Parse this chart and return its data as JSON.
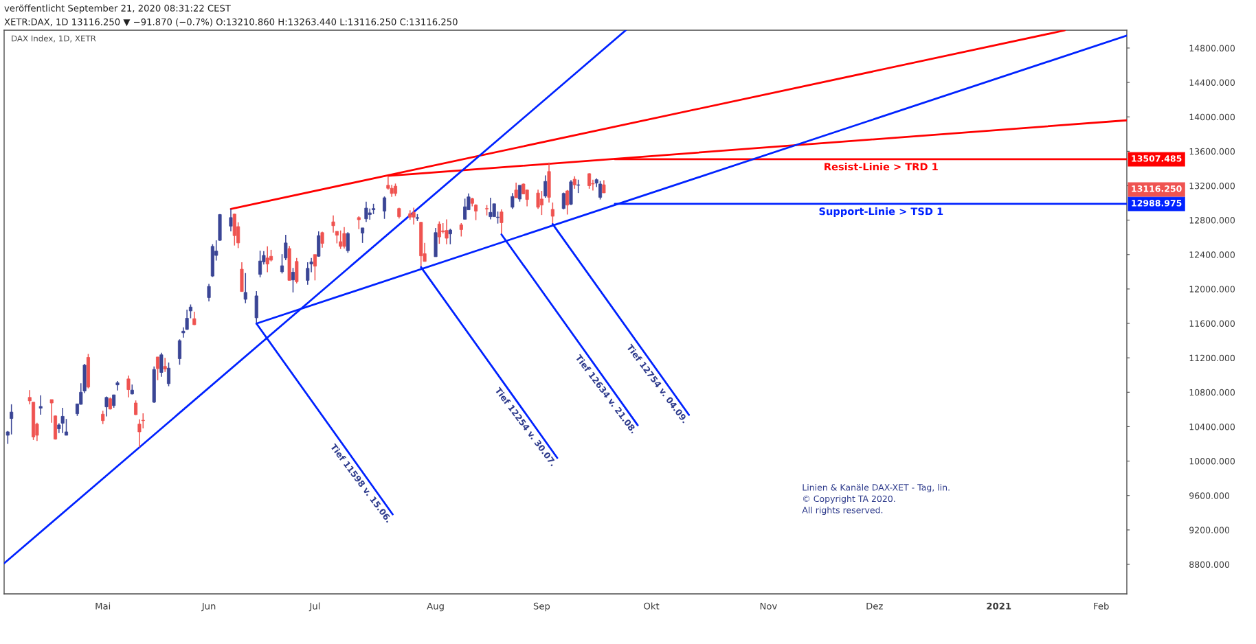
{
  "chart_data": {
    "type": "candlestick",
    "title": "XETR:DAX, 1D 13116.250 ▼ −91.870 (−0.7%) O:13210.860 H:13263.440 L:13116.250 C:13116.250",
    "subtitle": "DAX Index, 1D, XETR",
    "x": [
      "2020-04-08",
      "2020-04-09",
      "2020-04-14",
      "2020-04-15",
      "2020-04-16",
      "2020-04-17",
      "2020-04-20",
      "2020-04-21",
      "2020-04-22",
      "2020-04-23",
      "2020-04-24",
      "2020-04-27",
      "2020-04-28",
      "2020-04-29",
      "2020-04-30",
      "2020-05-04",
      "2020-05-05",
      "2020-05-06",
      "2020-05-07",
      "2020-05-08",
      "2020-05-11",
      "2020-05-12",
      "2020-05-13",
      "2020-05-14",
      "2020-05-15",
      "2020-05-18",
      "2020-05-19",
      "2020-05-20",
      "2020-05-21",
      "2020-05-22",
      "2020-05-25",
      "2020-05-26",
      "2020-05-27",
      "2020-05-28",
      "2020-05-29",
      "2020-06-02",
      "2020-06-03",
      "2020-06-04",
      "2020-06-05",
      "2020-06-08",
      "2020-06-09",
      "2020-06-10",
      "2020-06-11",
      "2020-06-12",
      "2020-06-15",
      "2020-06-16",
      "2020-06-17",
      "2020-06-18",
      "2020-06-19",
      "2020-06-22",
      "2020-06-23",
      "2020-06-24",
      "2020-06-25",
      "2020-06-26",
      "2020-06-29",
      "2020-06-30",
      "2020-07-01",
      "2020-07-02",
      "2020-07-03",
      "2020-07-06",
      "2020-07-07",
      "2020-07-08",
      "2020-07-09",
      "2020-07-10",
      "2020-07-13",
      "2020-07-14",
      "2020-07-15",
      "2020-07-16",
      "2020-07-17",
      "2020-07-20",
      "2020-07-21",
      "2020-07-22",
      "2020-07-23",
      "2020-07-24",
      "2020-07-27",
      "2020-07-28",
      "2020-07-29",
      "2020-07-30",
      "2020-07-31",
      "2020-08-03",
      "2020-08-04",
      "2020-08-05",
      "2020-08-06",
      "2020-08-07",
      "2020-08-10",
      "2020-08-11",
      "2020-08-12",
      "2020-08-13",
      "2020-08-14",
      "2020-08-17",
      "2020-08-18",
      "2020-08-19",
      "2020-08-20",
      "2020-08-21",
      "2020-08-24",
      "2020-08-25",
      "2020-08-26",
      "2020-08-27",
      "2020-08-28",
      "2020-08-31",
      "2020-09-01",
      "2020-09-02",
      "2020-09-03",
      "2020-09-04",
      "2020-09-07",
      "2020-09-08",
      "2020-09-09",
      "2020-09-10",
      "2020-09-11",
      "2020-09-14",
      "2020-09-15",
      "2020-09-16",
      "2020-09-17",
      "2020-09-18"
    ],
    "ohlc": [
      [
        10300,
        10350,
        10200,
        10340
      ],
      [
        10495,
        10660,
        10310,
        10570
      ],
      [
        10740,
        10825,
        10660,
        10700
      ],
      [
        10685,
        10685,
        10245,
        10280
      ],
      [
        10430,
        10445,
        10235,
        10300
      ],
      [
        10615,
        10765,
        10540,
        10635
      ],
      [
        10715,
        10715,
        10445,
        10675
      ],
      [
        10525,
        10530,
        10250,
        10255
      ],
      [
        10375,
        10440,
        10325,
        10420
      ],
      [
        10440,
        10620,
        10325,
        10520
      ],
      [
        10300,
        10490,
        10300,
        10340
      ],
      [
        10550,
        10665,
        10525,
        10665
      ],
      [
        10660,
        10905,
        10655,
        10800
      ],
      [
        10815,
        11130,
        10790,
        11115
      ],
      [
        11205,
        11245,
        10845,
        10860
      ],
      [
        10545,
        10585,
        10430,
        10470
      ],
      [
        10630,
        10750,
        10520,
        10740
      ],
      [
        10725,
        10740,
        10600,
        10605
      ],
      [
        10645,
        10770,
        10620,
        10770
      ],
      [
        10885,
        10930,
        10820,
        10910
      ],
      [
        10955,
        10995,
        10740,
        10830
      ],
      [
        10780,
        10890,
        10775,
        10825
      ],
      [
        10675,
        10705,
        10535,
        10540
      ],
      [
        10430,
        10485,
        10160,
        10340
      ],
      [
        10475,
        10555,
        10380,
        10470
      ],
      [
        10685,
        11100,
        10675,
        11065
      ],
      [
        11210,
        11210,
        10940,
        11075
      ],
      [
        11030,
        11260,
        10980,
        11235
      ],
      [
        11100,
        11200,
        11035,
        11070
      ],
      [
        10900,
        11145,
        10870,
        11080
      ],
      [
        11190,
        11415,
        11120,
        11400
      ],
      [
        11490,
        11555,
        11435,
        11510
      ],
      [
        11530,
        11760,
        11525,
        11660
      ],
      [
        11745,
        11820,
        11660,
        11790
      ],
      [
        11655,
        11735,
        11580,
        11585
      ],
      [
        11900,
        12060,
        11855,
        12030
      ],
      [
        12150,
        12520,
        12140,
        12495
      ],
      [
        12390,
        12565,
        12330,
        12440
      ],
      [
        12565,
        12870,
        12560,
        12865
      ],
      [
        12730,
        12930,
        12670,
        12830
      ],
      [
        12870,
        12875,
        12505,
        12620
      ],
      [
        12725,
        12775,
        12475,
        12535
      ],
      [
        12230,
        12310,
        11970,
        11970
      ],
      [
        11880,
        12185,
        11835,
        11960
      ],
      [
        11665,
        11975,
        11598,
        11920
      ],
      [
        12170,
        12445,
        12135,
        12325
      ],
      [
        12315,
        12440,
        12285,
        12390
      ],
      [
        12360,
        12495,
        12195,
        12290
      ],
      [
        12380,
        12455,
        12320,
        12335
      ],
      [
        12200,
        12405,
        12180,
        12270
      ],
      [
        12360,
        12630,
        12335,
        12535
      ],
      [
        12470,
        12500,
        12100,
        12100
      ],
      [
        12105,
        12245,
        11960,
        12195
      ],
      [
        12320,
        12360,
        12065,
        12085
      ],
      [
        12100,
        12310,
        12050,
        12240
      ],
      [
        12290,
        12360,
        12195,
        12315
      ],
      [
        12400,
        12400,
        12100,
        12265
      ],
      [
        12380,
        12670,
        12375,
        12620
      ],
      [
        12655,
        12665,
        12480,
        12530
      ],
      [
        12780,
        12855,
        12655,
        12735
      ],
      [
        12670,
        12670,
        12530,
        12625
      ],
      [
        12550,
        12680,
        12465,
        12495
      ],
      [
        12645,
        12720,
        12470,
        12495
      ],
      [
        12445,
        12660,
        12420,
        12645
      ],
      [
        12830,
        12845,
        12695,
        12805
      ],
      [
        12650,
        12710,
        12535,
        12710
      ],
      [
        12815,
        13015,
        12780,
        12940
      ],
      [
        12865,
        12935,
        12805,
        12885
      ],
      [
        12920,
        12990,
        12870,
        12935
      ],
      [
        12905,
        13075,
        12815,
        13060
      ],
      [
        13205,
        13314,
        13155,
        13170
      ],
      [
        13170,
        13210,
        13070,
        13110
      ],
      [
        13195,
        13225,
        13080,
        13110
      ],
      [
        12935,
        12945,
        12820,
        12840
      ],
      [
        12875,
        12915,
        12805,
        12835
      ],
      [
        12890,
        12945,
        12750,
        12835
      ],
      [
        12820,
        12870,
        12790,
        12830
      ],
      [
        12775,
        12780,
        12254,
        12385
      ],
      [
        12410,
        12535,
        12320,
        12320
      ],
      [
        12375,
        12710,
        12375,
        12655
      ],
      [
        12755,
        12785,
        12525,
        12605
      ],
      [
        12675,
        12765,
        12645,
        12665
      ],
      [
        12680,
        12810,
        12520,
        12590
      ],
      [
        12640,
        12700,
        12520,
        12685
      ],
      [
        12745,
        12765,
        12610,
        12690
      ],
      [
        12810,
        13050,
        12810,
        12955
      ],
      [
        12920,
        13110,
        12920,
        13070
      ],
      [
        13050,
        13060,
        12960,
        12995
      ],
      [
        12975,
        12985,
        12800,
        12905
      ],
      [
        12935,
        12975,
        12855,
        12930
      ],
      [
        12840,
        13060,
        12810,
        12890
      ],
      [
        12840,
        12990,
        12840,
        12990
      ],
      [
        12830,
        12900,
        12760,
        12835
      ],
      [
        12895,
        12925,
        12634,
        12770
      ],
      [
        12950,
        13115,
        12930,
        13075
      ],
      [
        13150,
        13235,
        13060,
        13060
      ],
      [
        13045,
        13205,
        13015,
        13205
      ],
      [
        13220,
        13225,
        13100,
        13105
      ],
      [
        13150,
        13155,
        12960,
        13040
      ],
      [
        13115,
        13155,
        12930,
        12950
      ],
      [
        13045,
        13140,
        12860,
        12975
      ],
      [
        13080,
        13320,
        13060,
        13250
      ],
      [
        13365,
        13470,
        13005,
        13065
      ],
      [
        12925,
        13005,
        12754,
        12845
      ],
      [
        12935,
        13120,
        12925,
        13110
      ],
      [
        13140,
        13150,
        12865,
        12975
      ],
      [
        12985,
        13265,
        12975,
        13245
      ],
      [
        13275,
        13310,
        13165,
        13210
      ],
      [
        13205,
        13270,
        13115,
        13210
      ],
      [
        13340,
        13345,
        13165,
        13200
      ],
      [
        13225,
        13270,
        13145,
        13220
      ],
      [
        13230,
        13285,
        13185,
        13270
      ],
      [
        13065,
        13255,
        13040,
        13220
      ],
      [
        13210.86,
        13263.44,
        13116.25,
        13116.25
      ]
    ],
    "colors": [
      "#3a4595",
      "#3a4595",
      "#ef5350",
      "#ef5350",
      "#ef5350",
      "#3a4595",
      "#ef5350",
      "#ef5350",
      "#3a4595",
      "#3a4595",
      "#3a4595",
      "#3a4595",
      "#3a4595",
      "#3a4595",
      "#ef5350",
      "#ef5350",
      "#3a4595",
      "#ef5350",
      "#3a4595",
      "#3a4595",
      "#ef5350",
      "#3a4595",
      "#ef5350",
      "#ef5350",
      "#ef5350",
      "#3a4595",
      "#ef5350",
      "#3a4595",
      "#ef5350",
      "#3a4595",
      "#3a4595",
      "#3a4595",
      "#3a4595",
      "#3a4595",
      "#ef5350",
      "#3a4595",
      "#3a4595",
      "#3a4595",
      "#3a4595",
      "#3a4595",
      "#ef5350",
      "#ef5350",
      "#ef5350",
      "#3a4595",
      "#3a4595",
      "#3a4595",
      "#3a4595",
      "#ef5350",
      "#ef5350",
      "#3a4595",
      "#3a4595",
      "#ef5350",
      "#3a4595",
      "#ef5350",
      "#3a4595",
      "#3a4595",
      "#ef5350",
      "#3a4595",
      "#ef5350",
      "#ef5350",
      "#ef5350",
      "#ef5350",
      "#ef5350",
      "#3a4595",
      "#ef5350",
      "#3a4595",
      "#3a4595",
      "#3a4595",
      "#3a4595",
      "#3a4595",
      "#ef5350",
      "#ef5350",
      "#ef5350",
      "#ef5350",
      "#ef5350",
      "#ef5350",
      "#3a4595",
      "#ef5350",
      "#ef5350",
      "#3a4595",
      "#ef5350",
      "#ef5350",
      "#ef5350",
      "#3a4595",
      "#ef5350",
      "#3a4595",
      "#3a4595",
      "#ef5350",
      "#ef5350",
      "#ef5350",
      "#3a4595",
      "#3a4595",
      "#3a4595",
      "#ef5350",
      "#3a4595",
      "#ef5350",
      "#3a4595",
      "#ef5350",
      "#ef5350",
      "#ef5350",
      "#ef5350",
      "#3a4595",
      "#ef5350",
      "#ef5350",
      "#3a4595",
      "#ef5350",
      "#3a4595",
      "#ef5350",
      "#3a4595",
      "#ef5350",
      "#ef5350",
      "#3a4595",
      "#3a4595",
      "#ef5350"
    ],
    "series": [
      {
        "type": "line",
        "color": "#ff0000",
        "x": [
          "2020-06-08",
          "2021-01-22"
        ],
        "values": [
          12930,
          15005
        ]
      },
      {
        "type": "line",
        "color": "#ff0000",
        "x": [
          "2020-07-21",
          "2021-02-08"
        ],
        "values": [
          13314,
          13960
        ]
      },
      {
        "type": "line",
        "name": "Resist-Linie > TRD 1",
        "color": "#ff0000",
        "x": [
          "2020-09-21",
          "2021-02-08"
        ],
        "values": [
          13507.485,
          13507.485
        ],
        "value_labels": [
          null,
          "13507.485"
        ]
      },
      {
        "type": "line",
        "color": "#0022ff",
        "x": [
          "2020-04-07",
          "2020-09-24"
        ],
        "values": [
          8812,
          15007
        ]
      },
      {
        "type": "line",
        "color": "#0022ff",
        "x": [
          "2020-06-15",
          "2021-02-08"
        ],
        "values": [
          11598,
          14945
        ]
      },
      {
        "type": "line",
        "name": "Support-Linie > TSD 1",
        "color": "#0022ff",
        "x": [
          "2020-09-21",
          "2021-02-08"
        ],
        "values": [
          12988.975,
          12988.975
        ],
        "value_labels": [
          null,
          "12988.975"
        ]
      }
    ],
    "xlim": [
      "2020-04-07",
      "2021-02-08"
    ],
    "xticks": [
      {
        "value": "2020-05-04",
        "label": "Mai"
      },
      {
        "value": "2020-06-02",
        "label": "Jun"
      },
      {
        "value": "2020-07-01",
        "label": "Jul"
      },
      {
        "value": "2020-08-03",
        "label": "Aug"
      },
      {
        "value": "2020-09-01",
        "label": "Sep"
      },
      {
        "value": "2020-10-01",
        "label": "Okt"
      },
      {
        "value": "2020-11-02",
        "label": "Nov"
      },
      {
        "value": "2020-12-01",
        "label": "Dez"
      },
      {
        "value": "2021-01-04",
        "label": "2021"
      },
      {
        "value": "2021-02-01",
        "label": "Feb"
      }
    ],
    "ylim": [
      8457,
      15007
    ],
    "yticks": [
      {
        "value": 8800,
        "label": "8800.000"
      },
      {
        "value": 9200,
        "label": "9200.000"
      },
      {
        "value": 9600,
        "label": "9600.000"
      },
      {
        "value": 10000,
        "label": "10000.000"
      },
      {
        "value": 10400,
        "label": "10400.000"
      },
      {
        "value": 10800,
        "label": "10800.000"
      },
      {
        "value": 11200,
        "label": "11200.000"
      },
      {
        "value": 11600,
        "label": "11600.000"
      },
      {
        "value": 12000,
        "label": "12000.000"
      },
      {
        "value": 12400,
        "label": "12400.000"
      },
      {
        "value": 12800,
        "label": "12800.000"
      },
      {
        "value": 13200,
        "label": "13200.000"
      },
      {
        "value": 13600,
        "label": "13600.000"
      },
      {
        "value": 14000,
        "label": "14000.000"
      },
      {
        "value": 14400,
        "label": "14400.000"
      },
      {
        "value": 14800,
        "label": "14800.000"
      }
    ],
    "annotations": [
      "veröffentlicht September 21, 2020 08:31:22 CEST",
      "Linien & Kanäle DAX-XET - Tag, lin.",
      "© Copyright TA 2020.",
      "All rights reserved.",
      {
        "text": "Tief 11598 v. 15.06.",
        "x": "2020-06-15",
        "y": 11598
      },
      {
        "text": "Tief 12254 v. 30.07.",
        "x": "2020-07-30",
        "y": 12254
      },
      {
        "text": "Tief 12634 v. 21.08.",
        "x": "2020-08-21",
        "y": 12634
      },
      {
        "text": "Tief 12754 v. 04.09.",
        "x": "2020-09-04",
        "y": 12754
      },
      "13116.250"
    ]
  }
}
